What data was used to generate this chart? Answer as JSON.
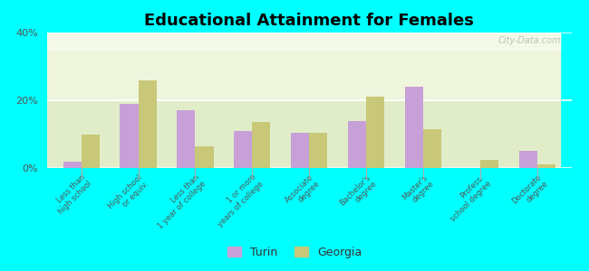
{
  "title": "Educational Attainment for Females",
  "categories": [
    "Less than\nhigh school",
    "High school\nor equiv.",
    "Less than\n1 year of college",
    "1 or more\nyears of college",
    "Associate\ndegree",
    "Bachelor's\ndegree",
    "Master's\ndegree",
    "Profess.\nschool degree",
    "Doctorate\ndegree"
  ],
  "turin_values": [
    2.0,
    19.0,
    17.0,
    11.0,
    10.5,
    14.0,
    24.0,
    0.0,
    5.0
  ],
  "georgia_values": [
    10.0,
    26.0,
    6.5,
    13.5,
    10.5,
    21.0,
    11.5,
    2.5,
    1.0
  ],
  "turin_color": "#c8a0d8",
  "georgia_color": "#c8c878",
  "background_color": "#00ffff",
  "ylim": [
    0,
    40
  ],
  "yticks": [
    0,
    20,
    40
  ],
  "ytick_labels": [
    "0%",
    "20%",
    "40%"
  ],
  "watermark": "City-Data.com",
  "legend_labels": [
    "Turin",
    "Georgia"
  ]
}
